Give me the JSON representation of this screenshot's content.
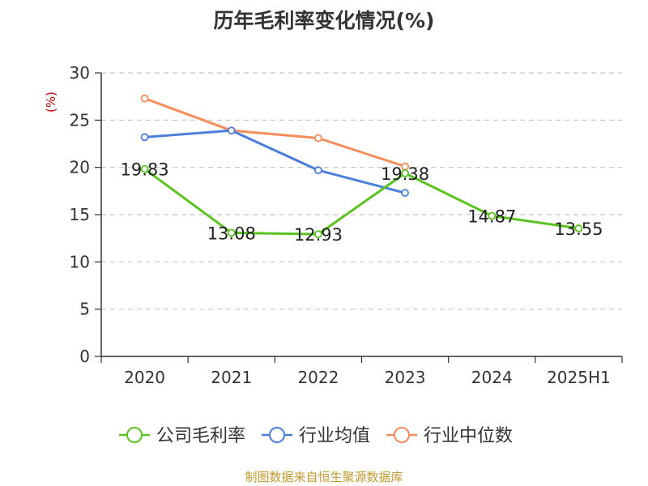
{
  "title": "历年毛利率变化情况(%)",
  "source": "制图数据来自恒生聚源数据库",
  "chart_data": {
    "type": "line",
    "title": "历年毛利率变化情况(%)",
    "ylabel": "(%)",
    "categories": [
      "2020",
      "2021",
      "2022",
      "2023",
      "2024",
      "2025H1"
    ],
    "ylim": [
      0,
      30
    ],
    "yticks": [
      0,
      5,
      10,
      15,
      20,
      25,
      30
    ],
    "grid": true,
    "legend": "bottom",
    "series": [
      {
        "name": "公司毛利率",
        "color": "#5ac31f",
        "values": [
          19.83,
          13.08,
          12.93,
          19.38,
          14.87,
          13.55
        ],
        "labels": [
          "19.83",
          "13.08",
          "12.93",
          "19.38",
          "14.87",
          "13.55"
        ]
      },
      {
        "name": "行业均值",
        "color": "#4a7fdc",
        "values": [
          23.2,
          23.9,
          19.7,
          17.3,
          null,
          null
        ]
      },
      {
        "name": "行业中位数",
        "color": "#f58c5a",
        "values": [
          27.3,
          23.9,
          23.1,
          20.1,
          null,
          null
        ]
      }
    ]
  }
}
